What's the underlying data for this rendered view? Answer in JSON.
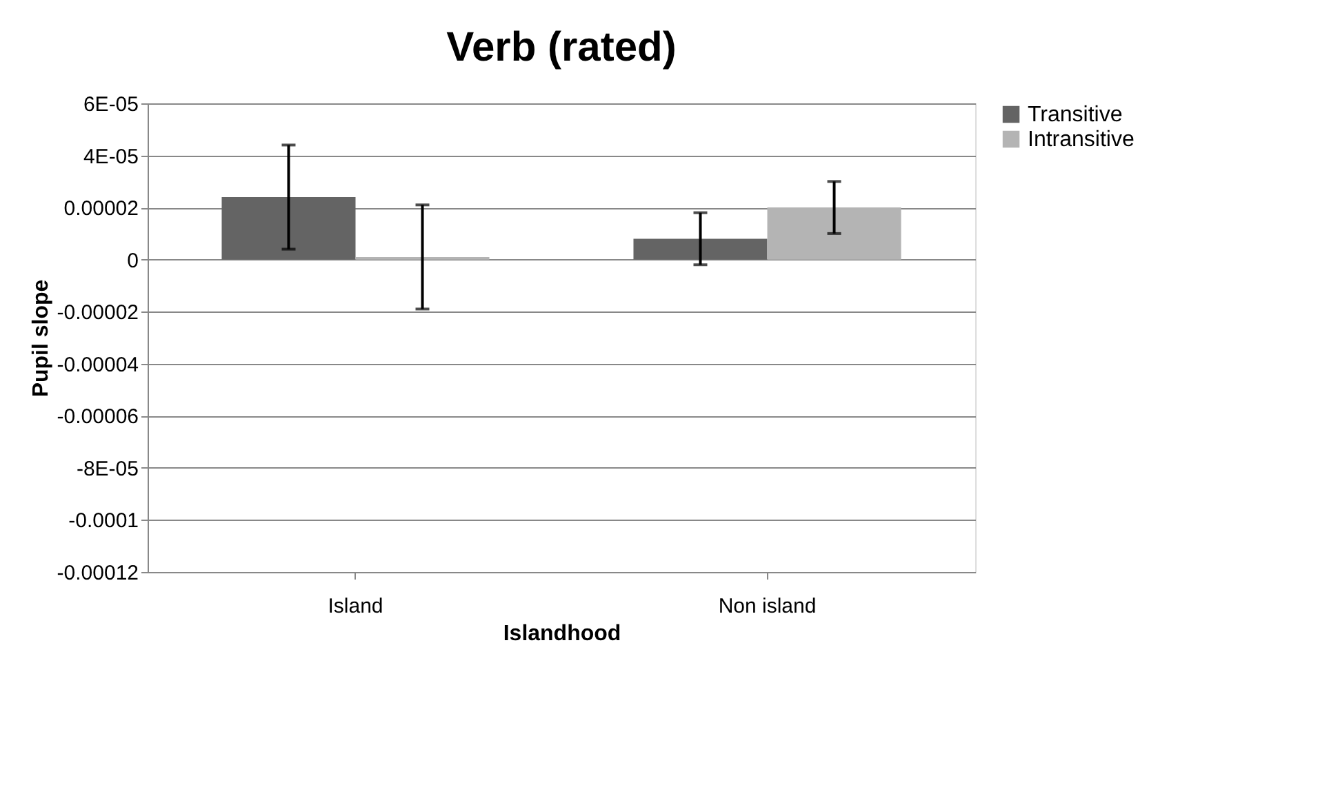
{
  "chart_data": {
    "type": "bar",
    "title": "Verb (rated)",
    "xlabel": "Islandhood",
    "ylabel": "Pupil slope",
    "categories": [
      "Island",
      "Non island"
    ],
    "series": [
      {
        "name": "Transitive",
        "color": "#646464",
        "values": [
          2.4e-05,
          8e-06
        ],
        "errors": [
          2e-05,
          1e-05
        ]
      },
      {
        "name": "Intransitive",
        "color": "#b4b4b4",
        "values": [
          1e-06,
          2e-05
        ],
        "errors": [
          2e-05,
          1e-05
        ]
      }
    ],
    "ylim": [
      -0.00012,
      6e-05
    ],
    "yticks": [
      {
        "value": 6e-05,
        "label": "6E-05"
      },
      {
        "value": 4e-05,
        "label": "4E-05"
      },
      {
        "value": 2e-05,
        "label": "0.00002"
      },
      0,
      {
        "value": -2e-05,
        "label": "-0.00002"
      },
      {
        "value": -4e-05,
        "label": "-0.00004"
      },
      {
        "value": -6e-05,
        "label": "-0.00006"
      },
      {
        "value": -8e-05,
        "label": "-8E-05"
      },
      {
        "value": -0.0001,
        "label": "-0.0001"
      },
      {
        "value": -0.00012,
        "label": "-0.00012"
      }
    ],
    "grid": "y",
    "legend": "right"
  }
}
